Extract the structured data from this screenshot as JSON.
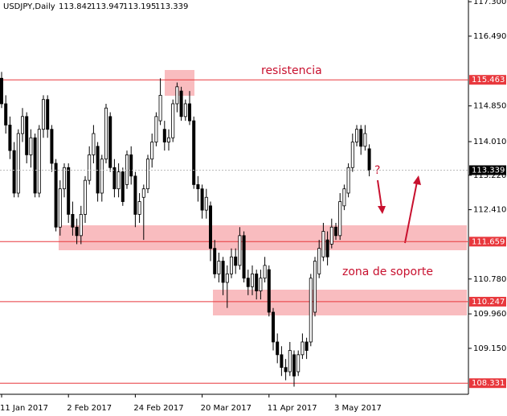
{
  "chart_data": {
    "type": "candlestick",
    "title": "USDJPY,Daily",
    "categories": [
      "11 Jan 2017",
      null,
      null,
      null,
      null,
      null,
      null,
      null,
      null,
      null,
      null,
      null,
      null,
      null,
      null,
      null,
      "2 Feb 2017",
      null,
      null,
      null,
      null,
      null,
      null,
      null,
      null,
      null,
      null,
      null,
      null,
      null,
      null,
      null,
      "24 Feb 2017",
      null,
      null,
      null,
      null,
      null,
      null,
      null,
      null,
      null,
      null,
      null,
      null,
      null,
      null,
      null,
      "20 Mar 2017",
      null,
      null,
      null,
      null,
      null,
      null,
      null,
      null,
      null,
      null,
      null,
      null,
      null,
      null,
      null,
      "11 Apr 2017",
      null,
      null,
      null,
      null,
      null,
      null,
      null,
      null,
      null,
      null,
      null,
      null,
      null,
      null,
      null,
      "3 May 2017",
      null,
      null,
      null,
      null,
      null,
      null,
      null,
      null
    ],
    "open": [
      115.5,
      114.9,
      114.4,
      113.8,
      112.8,
      114.2,
      114.6,
      113.7,
      114.1,
      112.8,
      114.3,
      115.0,
      114.3,
      113.5,
      112.0,
      112.9,
      113.4,
      112.3,
      112.0,
      111.8,
      112.3,
      113.1,
      113.7,
      113.9,
      112.8,
      113.6,
      114.6,
      113.4,
      112.9,
      113.3,
      113.0,
      113.7,
      113.2,
      112.3,
      112.7,
      112.9,
      113.6,
      114.0,
      114.5,
      114.3,
      114.0,
      114.1,
      114.9,
      115.2,
      114.6,
      114.9,
      114.5,
      113.0,
      112.9,
      112.4,
      112.5,
      111.5,
      110.9,
      111.2,
      110.7,
      110.9,
      111.3,
      111.1,
      111.8,
      110.8,
      110.6,
      110.9,
      110.5,
      110.8,
      111.0,
      110.0,
      109.3,
      109.0,
      108.7,
      108.6,
      109.0,
      108.6,
      109.0,
      109.3,
      109.3,
      110.0,
      110.9,
      111.3,
      111.7,
      111.6,
      112.0,
      111.8,
      112.5,
      112.8,
      113.4,
      114.0,
      114.3,
      113.9,
      113.842
    ],
    "high": [
      115.65,
      115.1,
      114.6,
      114.0,
      114.3,
      114.8,
      114.7,
      114.3,
      114.2,
      114.4,
      115.1,
      115.1,
      114.4,
      113.6,
      113.1,
      113.5,
      113.5,
      112.6,
      112.2,
      112.5,
      113.2,
      113.9,
      114.4,
      114.0,
      113.7,
      114.9,
      114.7,
      113.6,
      113.5,
      113.4,
      113.8,
      113.9,
      113.3,
      112.8,
      113.0,
      113.7,
      114.2,
      114.7,
      115.5,
      114.5,
      114.3,
      115.0,
      115.4,
      115.3,
      115.0,
      115.2,
      114.6,
      113.2,
      113.0,
      112.9,
      112.6,
      111.7,
      111.4,
      111.3,
      111.1,
      111.5,
      111.5,
      112.0,
      111.9,
      111.0,
      111.1,
      111.0,
      111.0,
      111.3,
      111.1,
      110.1,
      109.5,
      109.2,
      108.9,
      109.3,
      109.1,
      109.1,
      109.5,
      109.4,
      110.9,
      111.3,
      111.7,
      112.1,
      111.9,
      112.2,
      112.1,
      112.8,
      113.0,
      113.5,
      114.2,
      114.4,
      114.4,
      114.4,
      113.947
    ],
    "low": [
      114.8,
      114.2,
      113.6,
      112.7,
      112.7,
      114.0,
      113.5,
      113.4,
      112.7,
      112.7,
      114.1,
      114.1,
      113.3,
      111.9,
      111.8,
      112.7,
      112.1,
      111.8,
      111.6,
      111.6,
      112.1,
      113.0,
      113.5,
      112.6,
      112.6,
      113.5,
      113.3,
      112.7,
      112.7,
      112.5,
      112.9,
      113.0,
      112.0,
      112.1,
      111.7,
      112.8,
      113.4,
      113.9,
      114.4,
      113.8,
      113.8,
      114.0,
      114.7,
      114.5,
      114.5,
      114.4,
      112.9,
      112.6,
      112.2,
      112.2,
      111.2,
      110.8,
      110.7,
      110.4,
      110.1,
      110.8,
      110.9,
      111.0,
      110.7,
      110.4,
      110.4,
      110.3,
      110.3,
      110.7,
      109.9,
      109.1,
      108.8,
      108.5,
      108.4,
      108.5,
      108.25,
      108.5,
      108.9,
      108.9,
      109.2,
      109.9,
      110.8,
      111.2,
      111.1,
      111.5,
      111.7,
      111.7,
      112.4,
      112.7,
      113.3,
      113.9,
      113.7,
      113.8,
      113.195
    ],
    "close": [
      114.9,
      114.4,
      113.8,
      112.8,
      114.2,
      114.6,
      113.7,
      114.1,
      112.8,
      114.3,
      115.0,
      114.3,
      113.5,
      112.0,
      112.9,
      113.4,
      112.3,
      112.0,
      111.8,
      112.3,
      113.1,
      113.7,
      114.2,
      112.8,
      113.6,
      114.8,
      113.4,
      112.9,
      113.3,
      112.6,
      113.7,
      113.2,
      112.3,
      112.6,
      112.9,
      113.6,
      114.0,
      114.6,
      115.1,
      114.0,
      114.1,
      114.9,
      115.3,
      114.6,
      114.9,
      114.5,
      113.0,
      112.9,
      112.4,
      112.7,
      111.5,
      110.9,
      111.2,
      110.7,
      110.9,
      111.3,
      111.1,
      111.8,
      110.8,
      110.6,
      110.9,
      110.5,
      110.8,
      111.1,
      110.0,
      109.3,
      109.0,
      108.7,
      108.6,
      109.1,
      108.5,
      109.0,
      109.3,
      109.1,
      110.8,
      111.2,
      111.5,
      111.9,
      111.3,
      112.0,
      111.8,
      112.6,
      112.9,
      113.4,
      114.0,
      114.3,
      113.9,
      114.2,
      113.339
    ],
    "ylim": [
      108.07,
      117.34
    ],
    "yticks": [
      {
        "value": 117.3,
        "label": "117.300"
      },
      {
        "value": 116.49,
        "label": "116.490"
      },
      {
        "value": 114.85,
        "label": "114.850"
      },
      {
        "value": 114.01,
        "label": "114.010"
      },
      {
        "value": 113.22,
        "label": "113.220"
      },
      {
        "value": 112.41,
        "label": "112.410"
      },
      {
        "value": 110.78,
        "label": "110.780"
      },
      {
        "value": 109.96,
        "label": "109.960"
      },
      {
        "value": 109.15,
        "label": "109.150"
      }
    ],
    "levels": [
      115.463,
      111.659,
      110.247,
      108.331
    ],
    "level_color": "#e8383d",
    "annotations": [
      "resistencia",
      "zona de soporte",
      "?"
    ]
  }
}
